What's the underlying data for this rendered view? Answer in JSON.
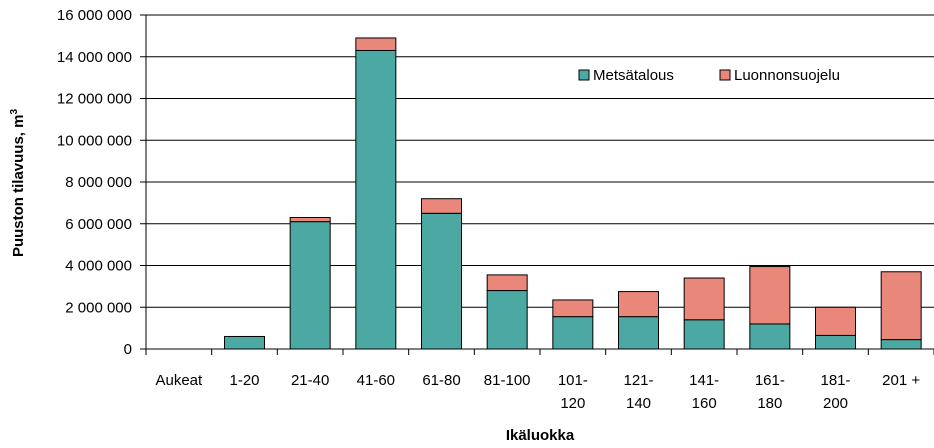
{
  "chart_data": {
    "type": "bar",
    "stacked": true,
    "categories": [
      [
        "Aukeat"
      ],
      [
        "1-20"
      ],
      [
        "21-40"
      ],
      [
        "41-60"
      ],
      [
        "61-80"
      ],
      [
        "81-100"
      ],
      [
        "101-",
        "120"
      ],
      [
        "121-",
        "140"
      ],
      [
        "141-",
        "160"
      ],
      [
        "161-",
        "180"
      ],
      [
        "181-",
        "200"
      ],
      [
        "201 +"
      ]
    ],
    "series": [
      {
        "name": "Metsätalous",
        "color": "#4ba8a2",
        "values": [
          0,
          600000,
          6100000,
          14300000,
          6500000,
          2800000,
          1550000,
          1550000,
          1400000,
          1200000,
          650000,
          450000
        ]
      },
      {
        "name": "Luonnonsuojelu",
        "color": "#e8877a",
        "values": [
          0,
          0,
          200000,
          600000,
          700000,
          750000,
          800000,
          1200000,
          2000000,
          2750000,
          1350000,
          3250000
        ]
      }
    ],
    "xlabel": "Ikäluokka",
    "ylabel": "Puuston tilavuus, m",
    "ylabel_superscript": "3",
    "ylim": [
      0,
      16000000
    ],
    "yticks": [
      0,
      2000000,
      4000000,
      6000000,
      8000000,
      10000000,
      12000000,
      14000000,
      16000000
    ],
    "ytick_labels": [
      "0",
      "2 000 000",
      "4 000 000",
      "6 000 000",
      "8 000 000",
      "10 000 000",
      "12 000 000",
      "14 000 000",
      "16 000 000"
    ],
    "grid": true,
    "legend_position": "top-right"
  }
}
